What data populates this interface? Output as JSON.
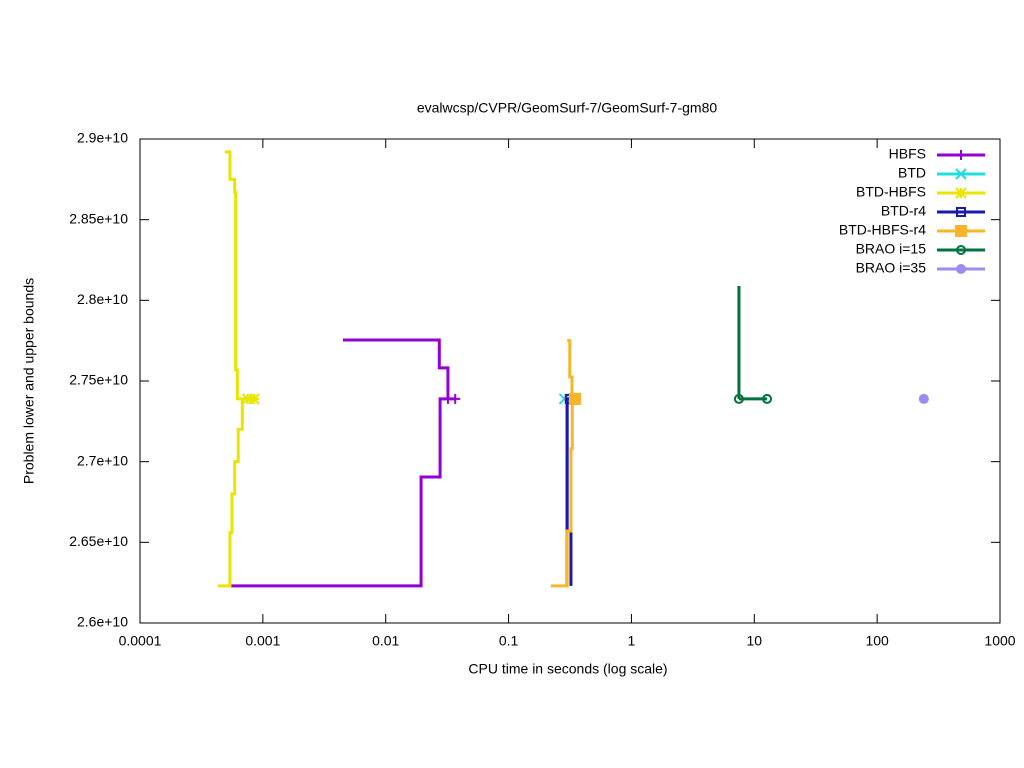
{
  "chart_data": {
    "type": "line",
    "title": "evalwcsp/CVPR/GeomSurf-7/GeomSurf-7-gm80",
    "x_label": "CPU time in seconds (log scale)",
    "y_label": "Problem lower and upper bounds",
    "xlog": true,
    "xlim": [
      0.0001,
      1000
    ],
    "xticks": [
      0.0001,
      0.001,
      0.01,
      0.1,
      1,
      10,
      100,
      1000
    ],
    "ylim": [
      26000000000,
      29000000000
    ],
    "yticks": [
      {
        "value": 26000000000,
        "label": "2.6e+10"
      },
      {
        "value": 26500000000,
        "label": "2.65e+10"
      },
      {
        "value": 27000000000,
        "label": "2.7e+10"
      },
      {
        "value": 27500000000,
        "label": "2.75e+10"
      },
      {
        "value": 28000000000,
        "label": "2.8e+10"
      },
      {
        "value": 28500000000,
        "label": "2.85e+10"
      },
      {
        "value": 29000000000,
        "label": "2.9e+10"
      }
    ],
    "legend": "top-right",
    "series": [
      {
        "name": "HBFS",
        "color": "#9400d3",
        "marker": "plus",
        "x": [
          0.00449,
          0.0273,
          0.0273,
          0.0321,
          0.0321,
          0.0368,
          null,
          0.00054,
          0.0194,
          0.0194,
          0.0277,
          0.0277,
          0.0321
        ],
        "values": [
          27754000000,
          27754000000,
          27581000000,
          27581000000,
          27389000000,
          27389000000,
          null,
          26230000000,
          26230000000,
          26905000000,
          26905000000,
          27389000000,
          27389000000
        ]
      },
      {
        "name": "BTD",
        "color": "#22dddd",
        "marker": "cross",
        "x": [
          0.298,
          0.298,
          0.285
        ],
        "values": [
          26230000000,
          27389000000,
          27389000000
        ]
      },
      {
        "name": "BTD-HBFS",
        "color": "#e6e600",
        "marker": "star",
        "x": [
          0.00049,
          0.00054,
          0.00054,
          0.00059,
          0.00059,
          0.0006,
          0.0006,
          0.00062,
          0.00062,
          0.00085,
          null,
          0.00043,
          0.00054,
          0.00054,
          0.00056,
          0.00056,
          0.00059,
          0.00059,
          0.00063,
          0.00063,
          0.00068,
          0.00068,
          0.00075
        ],
        "values": [
          28920000000,
          28920000000,
          28750000000,
          28750000000,
          28670000000,
          28670000000,
          27570000000,
          27570000000,
          27389000000,
          27389000000,
          null,
          26230000000,
          26230000000,
          26560000000,
          26560000000,
          26800000000,
          26800000000,
          27000000000,
          27000000000,
          27200000000,
          27200000000,
          27389000000,
          27389000000
        ]
      },
      {
        "name": "BTD-r4",
        "color": "#1a1aaa",
        "marker": "square-open",
        "x": [
          0.322,
          0.322,
          0.3,
          0.3,
          0.315
        ],
        "values": [
          26230000000,
          26570000000,
          26570000000,
          27389000000,
          27389000000
        ]
      },
      {
        "name": "BTD-HBFS-r4",
        "color": "#f7b52a",
        "marker": "square",
        "x": [
          0.3,
          0.315,
          0.315,
          0.328,
          0.328,
          0.347,
          null,
          0.221,
          0.3,
          0.3,
          0.322,
          0.322,
          0.33,
          0.33,
          0.347
        ],
        "values": [
          27750000000,
          27750000000,
          27525000000,
          27525000000,
          27389000000,
          27389000000,
          null,
          26230000000,
          26230000000,
          26570000000,
          26570000000,
          27080000000,
          27080000000,
          27389000000,
          27389000000
        ]
      },
      {
        "name": "BRAO i=15",
        "color": "#00733c",
        "marker": "circle-open",
        "x": [
          7.5,
          7.5,
          null,
          7.5,
          12.7
        ],
        "values": [
          28089000000,
          27389000000,
          null,
          27389000000,
          27389000000
        ]
      },
      {
        "name": "BRAO i=35",
        "color": "#9b8cf0",
        "marker": "circle",
        "x": [
          240
        ],
        "values": [
          27389000000
        ]
      }
    ]
  }
}
